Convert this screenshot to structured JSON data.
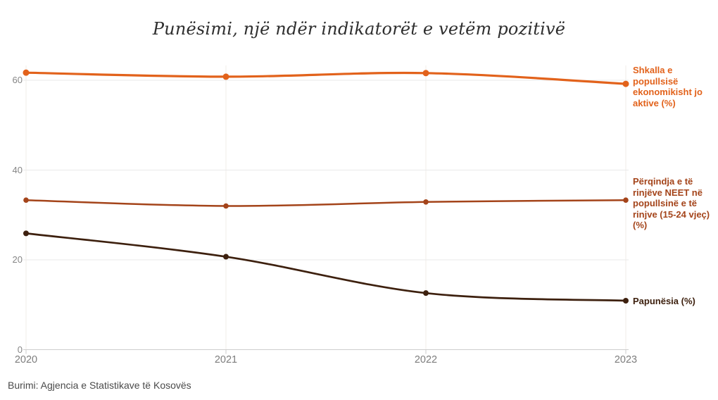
{
  "title": "Punësimi, një ndër indikatorët e vetëm pozitivë",
  "source": "Burimi: Agjencia e Statistikave të Kosovës",
  "colors": {
    "background": "#ffffff",
    "title_text": "#2e2e2e",
    "tick_text": "#858585",
    "x_tick_text": "#7d7d7d",
    "source_text": "#4a4a4a",
    "h_gridline": "#e9e9e9",
    "v_gridline": "#f2eee8",
    "baseline": "#cdcdcd",
    "series_inactive": "#e2621b",
    "series_neet": "#a4441a",
    "series_unemployment": "#3d200e"
  },
  "chart_data": {
    "type": "line",
    "x": [
      "2020",
      "2021",
      "2022",
      "2023"
    ],
    "series": [
      {
        "name": "Shkalla e popullsisë ekonomikisht jo aktive (%)",
        "label_lines": "Shkalla e\npopullsisë\nekonomikisht jo\naktive (%)",
        "color": "#e2621b",
        "values": [
          61.7,
          60.8,
          61.6,
          59.2
        ]
      },
      {
        "name": "Përqindja e të rinjëve NEET në popullsinë e të rinjve (15-24 vjeç) (%)",
        "label_lines": "Përqindja e të\nrinjëve NEET në\npopullsinë e të\nrinjve (15-24 vjeç)\n(%)",
        "color": "#a4441a",
        "values": [
          33.3,
          32.0,
          32.9,
          33.3
        ]
      },
      {
        "name": "Papunësia (%)",
        "label_lines": "Papunësia (%)",
        "color": "#3d200e",
        "values": [
          25.9,
          20.7,
          12.6,
          10.9
        ]
      }
    ],
    "yticks": [
      0,
      20,
      40,
      60
    ],
    "ylim": [
      0,
      63
    ],
    "grid": "on",
    "legend_position": "right-labels",
    "curve": "smooth"
  }
}
